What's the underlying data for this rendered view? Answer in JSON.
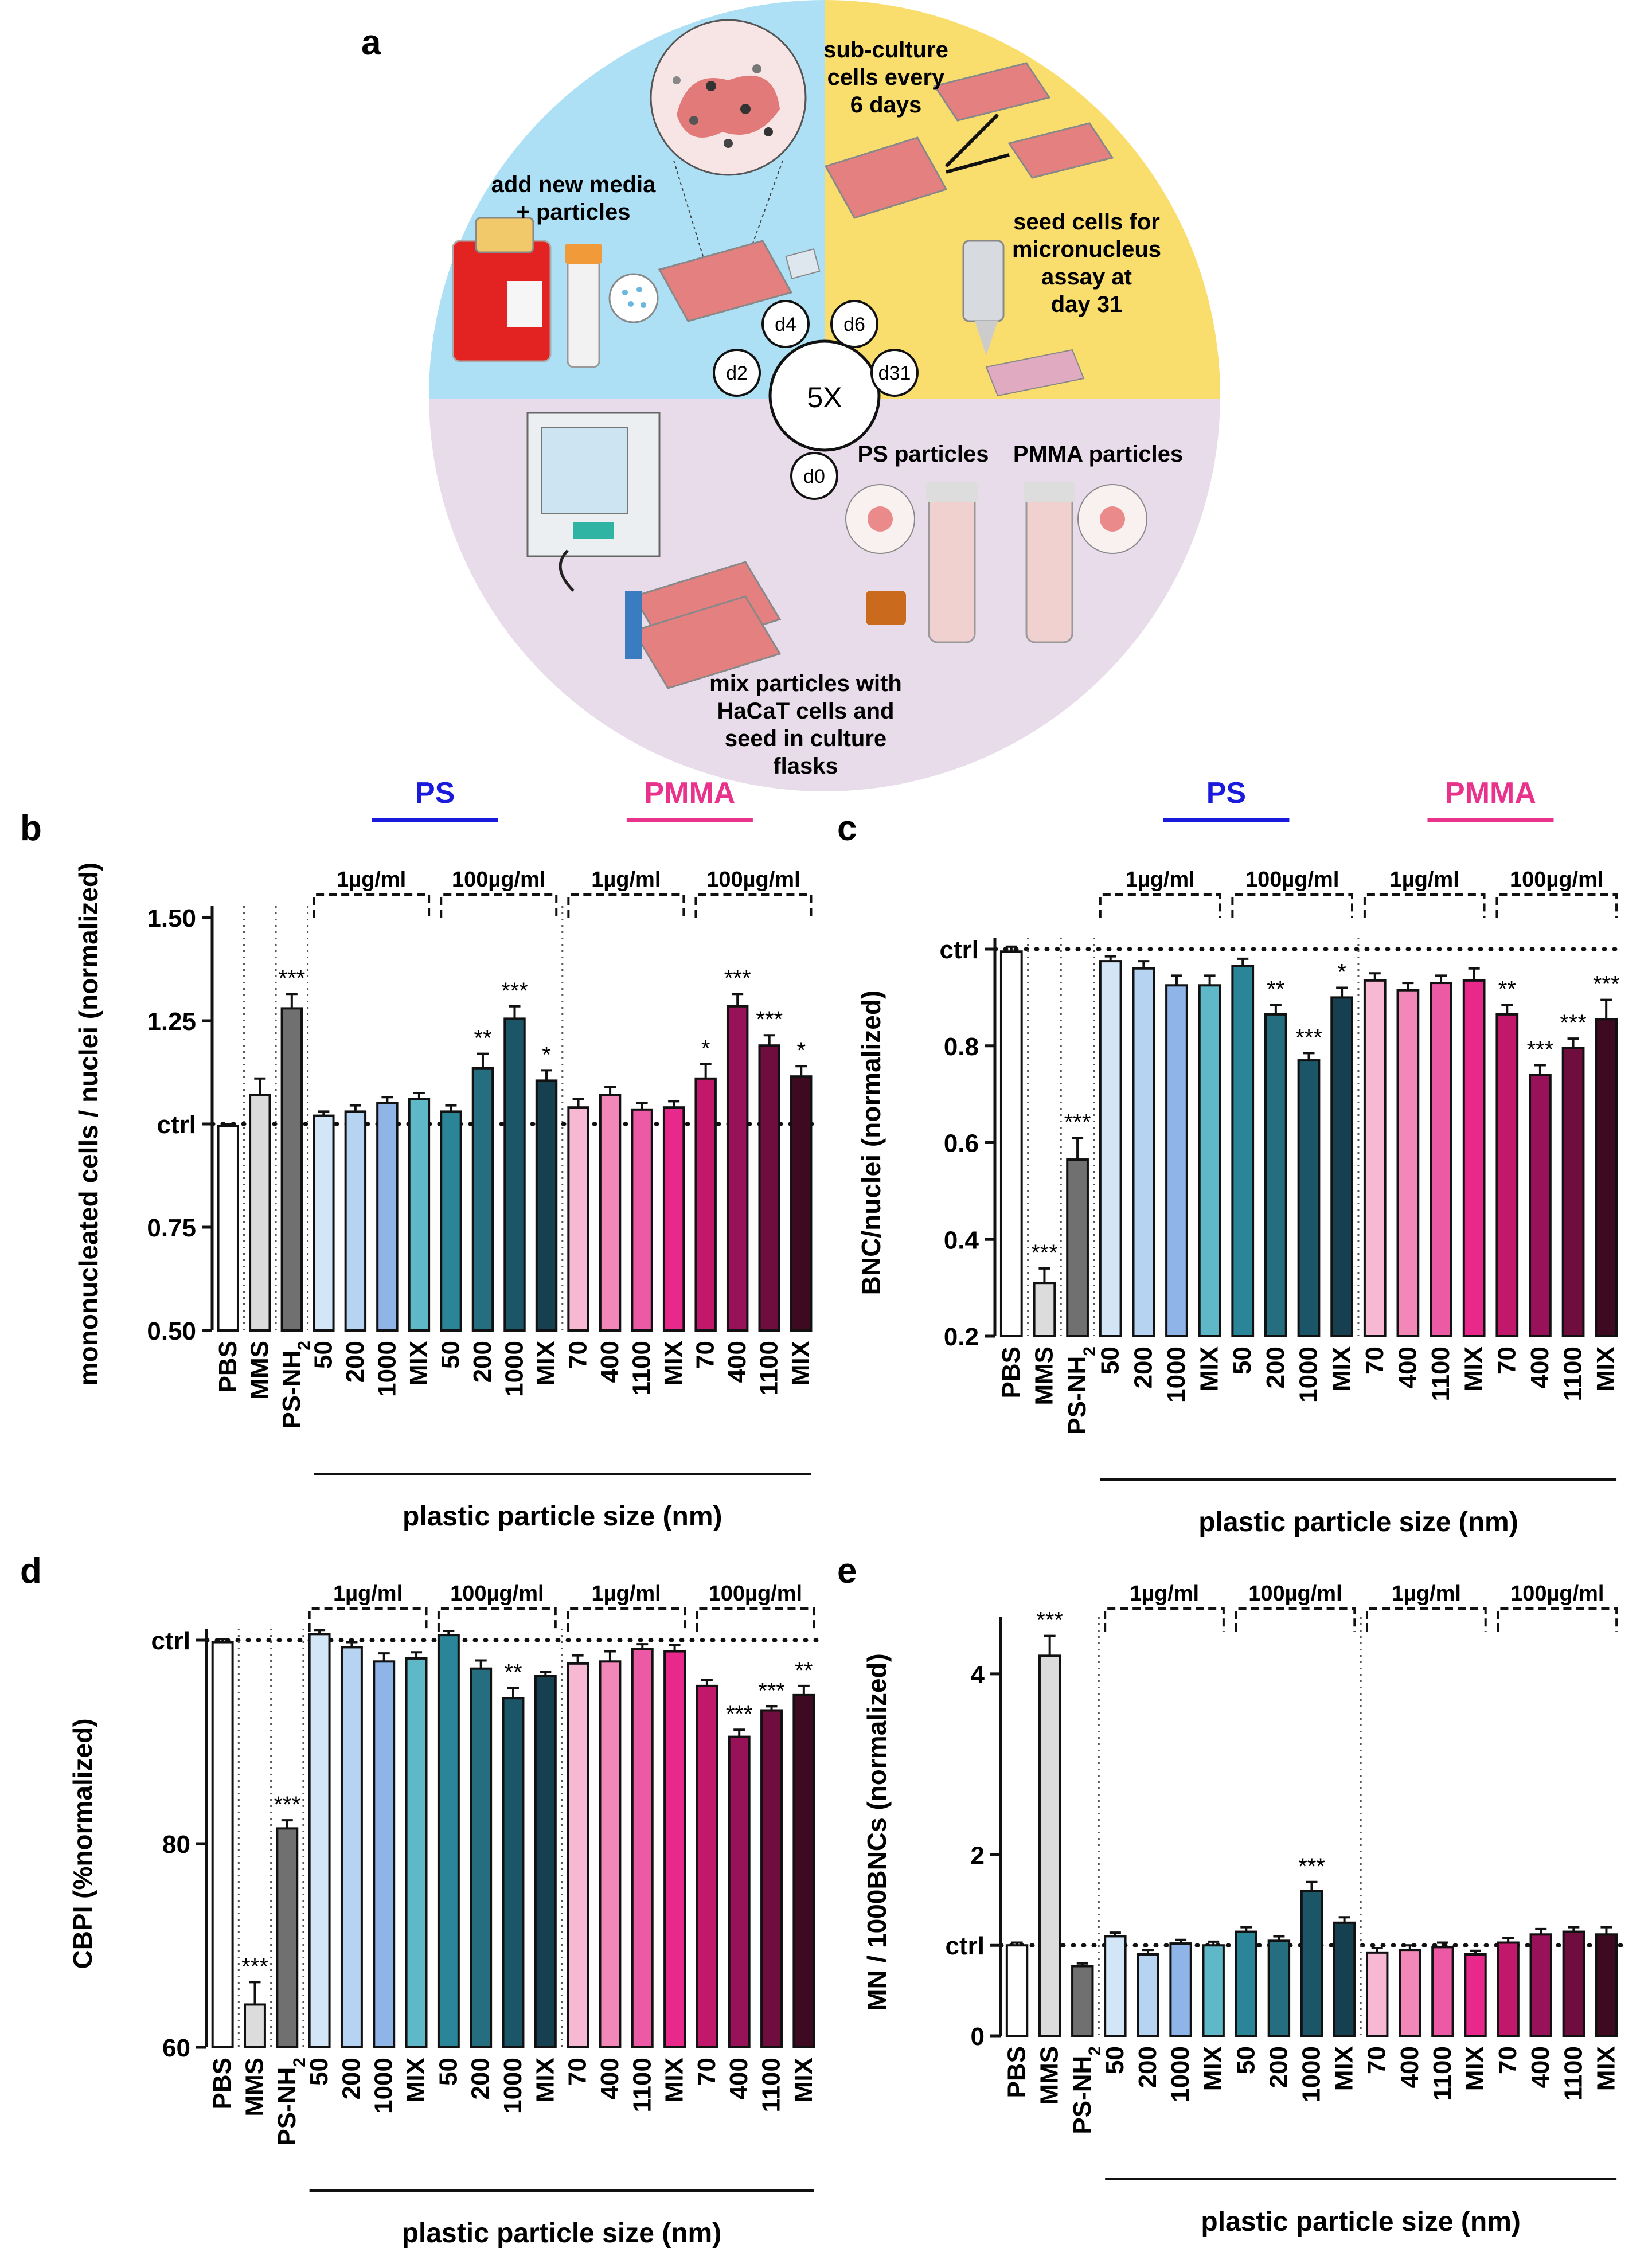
{
  "panel_a": {
    "letter": "a",
    "texts": {
      "subculture": [
        "sub-culture",
        "cells every",
        "6 days"
      ],
      "add_media": [
        "add new media",
        "+ particles"
      ],
      "seed_mn": [
        "seed cells for",
        "micronucleus",
        "assay at",
        "day 31"
      ],
      "mix": [
        "mix particles with",
        "HaCaT cells and",
        "seed in culture",
        "flasks"
      ],
      "ps_particles": "PS particles",
      "pmma_particles": "PMMA particles",
      "cycle": "5X",
      "days": [
        "d0",
        "d2",
        "d4",
        "d6",
        "d31"
      ]
    },
    "colors": {
      "blue": "#aee0f5",
      "yellow": "#f9de6e",
      "lavender": "#e9dcea"
    }
  },
  "common": {
    "ctrl_label": "ctrl",
    "group_labels": {
      "ps": "PS",
      "pmma": "PMMA"
    },
    "conc_labels": {
      "low": "1µg/ml",
      "high": "100µg/ml"
    },
    "xlabel": "plastic particle size (nm)",
    "ctrl_labels": [
      "PBS",
      "MMS",
      "PS-NH2"
    ],
    "ps_sizes": [
      "50",
      "200",
      "1000",
      "MIX",
      "50",
      "200",
      "1000",
      "MIX"
    ],
    "pmma_sizes": [
      "70",
      "400",
      "1100",
      "MIX",
      "70",
      "400",
      "1100",
      "MIX"
    ],
    "colors": {
      "ps_label": "#1a1adc",
      "pmma_label": "#e8328c",
      "bars": [
        "#ffffff",
        "#dcdcdc",
        "#707070",
        "#d3e6f8",
        "#b6d4f2",
        "#8fb4e8",
        "#5fb8c8",
        "#2a8598",
        "#256e80",
        "#1b5568",
        "#163f4f",
        "#f6b8d2",
        "#f287b8",
        "#ec5aa6",
        "#e8288a",
        "#c2186c",
        "#98125a",
        "#6e0d3e",
        "#3e0a22"
      ]
    }
  },
  "chart_data": [
    {
      "id": "b",
      "type": "bar",
      "letter": "b",
      "ylabel": "mononucleated cells / nuclei (normalized)",
      "ylim": [
        0.5,
        1.5
      ],
      "yticks": [
        "0.50",
        "0.75",
        "ctrl",
        "1.25",
        "1.50"
      ],
      "ytick_values": [
        0.5,
        0.75,
        1.0,
        1.25,
        1.5
      ],
      "ctrl_value": 1.0,
      "categories": [
        "PBS",
        "MMS",
        "PS-NH2",
        "50",
        "200",
        "1000",
        "MIX",
        "50",
        "200",
        "1000",
        "MIX",
        "70",
        "400",
        "1100",
        "MIX",
        "70",
        "400",
        "1100",
        "MIX"
      ],
      "values": [
        0.995,
        1.07,
        1.28,
        1.02,
        1.03,
        1.05,
        1.06,
        1.03,
        1.135,
        1.255,
        1.105,
        1.04,
        1.07,
        1.035,
        1.04,
        1.11,
        1.285,
        1.19,
        1.115
      ],
      "errors": [
        0.005,
        0.04,
        0.035,
        0.01,
        0.015,
        0.015,
        0.015,
        0.015,
        0.035,
        0.03,
        0.025,
        0.02,
        0.02,
        0.015,
        0.015,
        0.035,
        0.03,
        0.025,
        0.025
      ],
      "stars": [
        "",
        "",
        "***",
        "",
        "",
        "",
        "",
        "",
        "**",
        "***",
        "*",
        "",
        "",
        "",
        "",
        "*",
        "***",
        "***",
        "*"
      ]
    },
    {
      "id": "c",
      "type": "bar",
      "letter": "c",
      "ylabel": "BNC/nuclei (normalized)",
      "ylim": [
        0.2,
        1.0
      ],
      "yticks": [
        "0.2",
        "0.4",
        "0.6",
        "0.8",
        "ctrl"
      ],
      "ytick_values": [
        0.2,
        0.4,
        0.6,
        0.8,
        1.0
      ],
      "ctrl_value": 1.0,
      "categories": [
        "PBS",
        "MMS",
        "PS-NH2",
        "50",
        "200",
        "1000",
        "MIX",
        "50",
        "200",
        "1000",
        "MIX",
        "70",
        "400",
        "1100",
        "MIX",
        "70",
        "400",
        "1100",
        "MIX"
      ],
      "values": [
        0.995,
        0.31,
        0.565,
        0.975,
        0.96,
        0.925,
        0.925,
        0.965,
        0.865,
        0.77,
        0.9,
        0.935,
        0.915,
        0.93,
        0.935,
        0.865,
        0.74,
        0.795,
        0.855
      ],
      "errors": [
        0.01,
        0.03,
        0.045,
        0.01,
        0.015,
        0.02,
        0.02,
        0.015,
        0.02,
        0.015,
        0.02,
        0.015,
        0.015,
        0.015,
        0.025,
        0.02,
        0.02,
        0.02,
        0.04
      ],
      "stars": [
        "",
        "***",
        "***",
        "",
        "",
        "",
        "",
        "",
        "**",
        "***",
        "*",
        "",
        "",
        "",
        "",
        "**",
        "***",
        "***",
        "***"
      ]
    },
    {
      "id": "d",
      "type": "bar",
      "letter": "d",
      "ylabel": "CBPI (%normalized)",
      "ylim": [
        60,
        100
      ],
      "yticks": [
        "60",
        "80",
        "ctrl"
      ],
      "ytick_values": [
        60,
        80,
        100
      ],
      "ctrl_value": 100,
      "categories": [
        "PBS",
        "MMS",
        "PS-NH2",
        "50",
        "200",
        "1000",
        "MIX",
        "50",
        "200",
        "1000",
        "MIX",
        "70",
        "400",
        "1100",
        "MIX",
        "70",
        "400",
        "1100",
        "MIX"
      ],
      "values": [
        99.8,
        64.2,
        81.5,
        100.6,
        99.3,
        97.9,
        98.2,
        100.5,
        97.2,
        94.3,
        96.5,
        97.7,
        97.9,
        99.1,
        98.9,
        95.5,
        90.5,
        93.1,
        94.6
      ],
      "errors": [
        0.3,
        2.2,
        0.8,
        0.4,
        0.5,
        0.8,
        0.6,
        0.4,
        0.8,
        1.0,
        0.4,
        0.8,
        1.0,
        0.5,
        0.6,
        0.6,
        0.7,
        0.4,
        0.9
      ],
      "stars": [
        "",
        "***",
        "***",
        "",
        "",
        "",
        "",
        "",
        "",
        "**",
        "",
        "",
        "",
        "",
        "",
        "",
        "***",
        "***",
        "**"
      ]
    },
    {
      "id": "e",
      "type": "bar",
      "letter": "e",
      "ylabel": "MN / 1000BNCs (normalized)",
      "ylim": [
        0,
        4.5
      ],
      "yticks": [
        "0",
        "ctrl",
        "2",
        "4"
      ],
      "ytick_values": [
        0,
        1,
        2,
        4
      ],
      "ctrl_value": 1.0,
      "categories": [
        "PBS",
        "MMS",
        "PS-NH2",
        "50",
        "200",
        "1000",
        "MIX",
        "50",
        "200",
        "1000",
        "MIX",
        "70",
        "400",
        "1100",
        "MIX",
        "70",
        "400",
        "1100",
        "MIX"
      ],
      "values": [
        1.0,
        4.2,
        0.77,
        1.1,
        0.9,
        1.02,
        1.0,
        1.15,
        1.05,
        1.6,
        1.25,
        0.92,
        0.95,
        0.98,
        0.9,
        1.03,
        1.12,
        1.15,
        1.12
      ],
      "errors": [
        0.03,
        0.22,
        0.03,
        0.04,
        0.05,
        0.04,
        0.04,
        0.05,
        0.05,
        0.1,
        0.06,
        0.05,
        0.05,
        0.05,
        0.04,
        0.05,
        0.06,
        0.05,
        0.08
      ],
      "stars": [
        "",
        "***",
        "",
        "",
        "",
        "",
        "",
        "",
        "",
        "***",
        "",
        "",
        "",
        "",
        "",
        "",
        "",
        "",
        ""
      ]
    }
  ]
}
